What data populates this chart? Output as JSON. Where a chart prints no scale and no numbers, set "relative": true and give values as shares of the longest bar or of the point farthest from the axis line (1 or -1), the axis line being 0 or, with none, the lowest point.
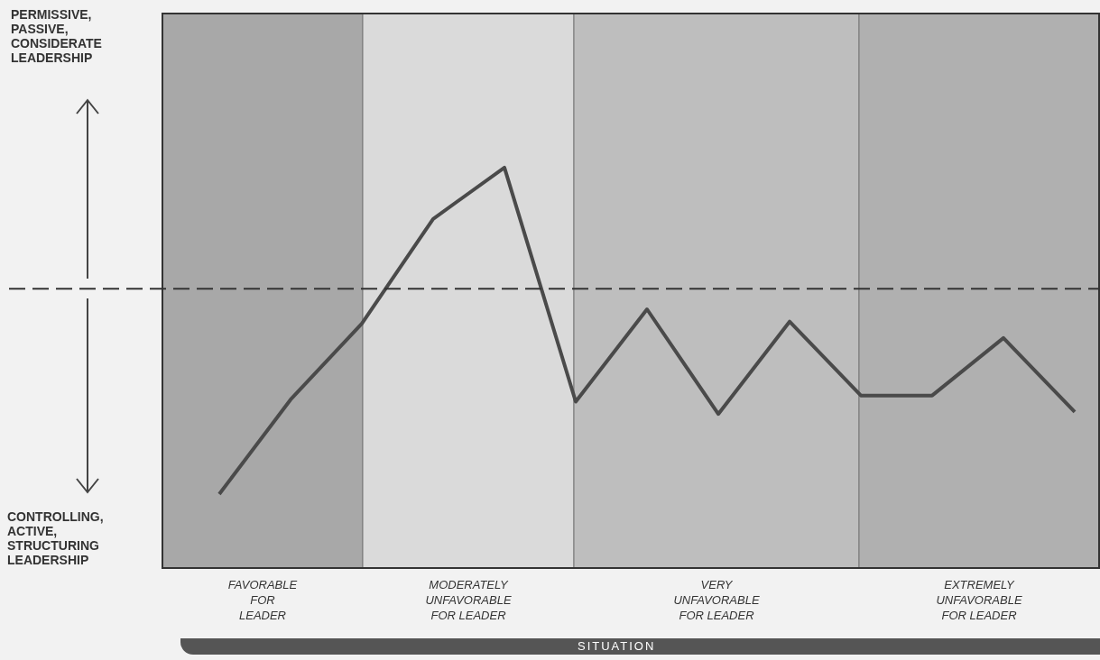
{
  "chart_data": {
    "type": "line",
    "relative": true,
    "categories": [
      null,
      null,
      null,
      null,
      null,
      null,
      null,
      null,
      null,
      null,
      null,
      null,
      null
    ],
    "series": [
      {
        "color": "#4a4a4a",
        "values": [
          -1,
          -0.54,
          -0.17,
          0.34,
          0.59,
          -0.55,
          -0.1,
          -0.61,
          -0.16,
          -0.52,
          -0.52,
          -0.24,
          -0.6
        ]
      }
    ],
    "annotations": [
      "PERMISSIVE,\nPASSIVE,\nCONSIDERATE\nLEADERSHIP",
      "CONTROLLING,\nACTIVE,\nSTRUCTURING\nLEADERSHIP",
      "FAVORABLE\nFOR\nLEADER",
      "MODERATELY\nUNFAVORABLE\nFOR LEADER",
      "VERY\nUNFAVORABLE\nFOR LEADER",
      "EXTREMELY\nUNFAVORABLE\nFOR LEADER",
      "SITUATION"
    ],
    "ref_lines": [
      {
        "axis": "y",
        "value": 0,
        "line_style": "dashed",
        "color": "#333333"
      }
    ],
    "marker": "none",
    "line_style": "solid"
  }
}
